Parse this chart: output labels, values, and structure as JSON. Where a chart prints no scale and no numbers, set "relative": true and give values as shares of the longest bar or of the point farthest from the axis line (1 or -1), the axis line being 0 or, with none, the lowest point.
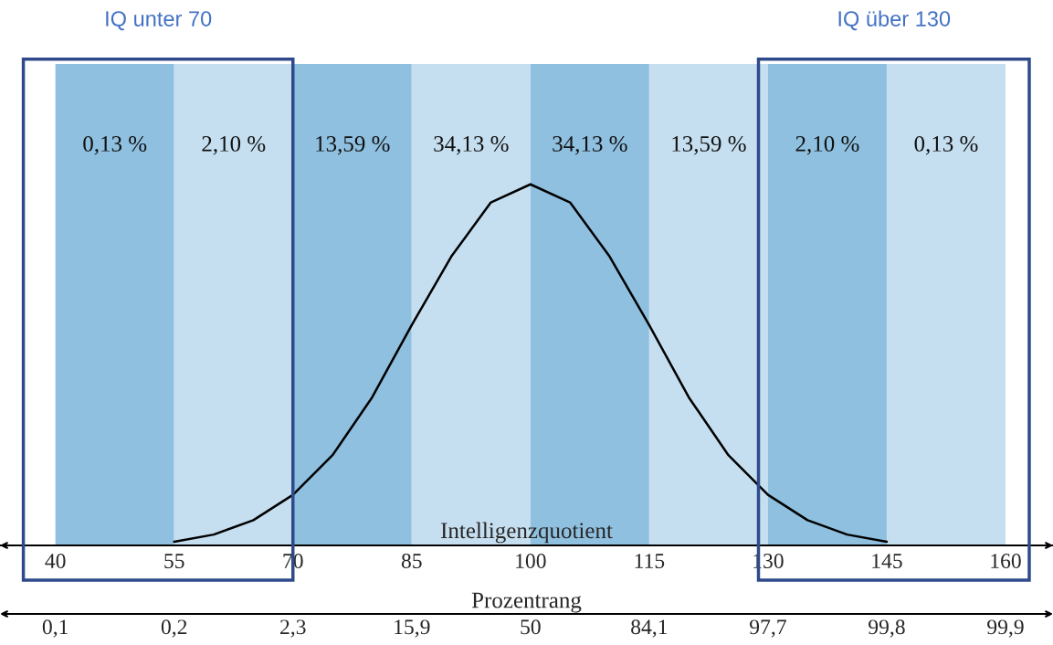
{
  "chart_data": {
    "type": "line",
    "relative": true,
    "grid": false,
    "x": [
      55,
      60,
      65,
      70,
      75,
      80,
      85,
      90,
      95,
      100,
      105,
      110,
      115,
      120,
      125,
      130,
      135,
      140,
      145
    ],
    "series": [
      {
        "color": "#000000",
        "line_style": "solid",
        "values": [
          0.01,
          0.03,
          0.07,
          0.14,
          0.25,
          0.41,
          0.61,
          0.8,
          0.95,
          1,
          0.95,
          0.8,
          0.61,
          0.41,
          0.25,
          0.14,
          0.07,
          0.03,
          0.01
        ]
      }
    ],
    "xlabel": "Intelligenzquotient",
    "xlim": [
      33,
      166
    ],
    "xticks": [
      40,
      55,
      70,
      85,
      100,
      115,
      130,
      145,
      160
    ],
    "bands": [
      {
        "axis": "x",
        "from": 40,
        "to": 55,
        "label": "0,13 %",
        "color": "#8fc0e0"
      },
      {
        "axis": "x",
        "from": 55,
        "to": 70,
        "label": "2,10 %",
        "color": "#c6dff0"
      },
      {
        "axis": "x",
        "from": 70,
        "to": 85,
        "label": "13,59 %",
        "color": "#8fc0e0"
      },
      {
        "axis": "x",
        "from": 85,
        "to": 100,
        "label": "34,13 %",
        "color": "#c6dff0"
      },
      {
        "axis": "x",
        "from": 100,
        "to": 115,
        "label": "34,13 %",
        "color": "#8fc0e0"
      },
      {
        "axis": "x",
        "from": 115,
        "to": 130,
        "label": "13,59 %",
        "color": "#c6dff0"
      },
      {
        "axis": "x",
        "from": 130,
        "to": 145,
        "label": "2,10 %",
        "color": "#8fc0e0"
      },
      {
        "axis": "x",
        "from": 145,
        "to": 160,
        "label": "0,13 %",
        "color": "#c6dff0"
      }
    ],
    "annotations": [
      "IQ unter 70",
      "IQ über 130",
      "Prozentrang",
      "0,1",
      "0,2",
      "2,3",
      "15,9",
      "50",
      "84,1",
      "97,7",
      "99,8",
      "99,9"
    ]
  }
}
